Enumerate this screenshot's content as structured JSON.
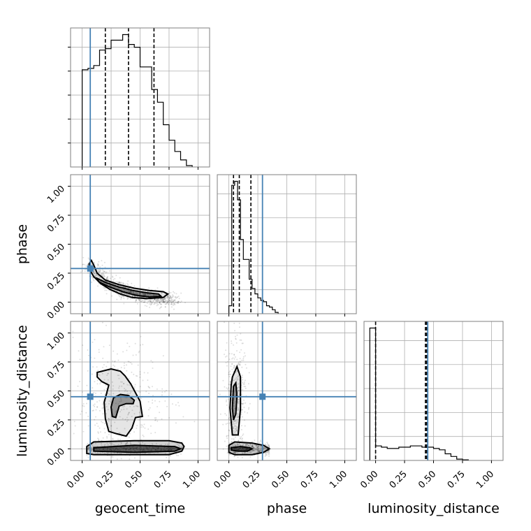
{
  "chart_data": {
    "type": "corner",
    "parameters": [
      "geocent_time",
      "phase",
      "luminosity_distance"
    ],
    "axis_range": [
      -0.1,
      1.1
    ],
    "ticks": [
      "0.00",
      "0.25",
      "0.50",
      "0.75",
      "1.00"
    ],
    "tick_values": [
      0,
      0.25,
      0.5,
      0.75,
      1.0
    ],
    "grid": true,
    "truth_color": "#4682b4",
    "truths": {
      "geocent_time": 0.07,
      "phase": 0.29,
      "luminosity_distance": 0.45
    },
    "quantiles": {
      "geocent_time": [
        0.2,
        0.4,
        0.62
      ],
      "phase": [
        0.04,
        0.09,
        0.19
      ],
      "luminosity_distance": [
        0.0,
        0.43,
        0.44
      ]
    },
    "histograms": {
      "geocent_time": {
        "edges": [
          0.0,
          0.05,
          0.1,
          0.15,
          0.2,
          0.25,
          0.3,
          0.35,
          0.4,
          0.45,
          0.5,
          0.55,
          0.6,
          0.65,
          0.7,
          0.75,
          0.8,
          0.85,
          0.9,
          0.95
        ],
        "counts": [
          0.69,
          0.7,
          0.72,
          0.83,
          0.84,
          0.9,
          0.9,
          0.94,
          0.87,
          0.85,
          0.71,
          0.71,
          0.55,
          0.46,
          0.3,
          0.19,
          0.11,
          0.05,
          0.01
        ]
      },
      "phase": {
        "edges": [
          0.0,
          0.025,
          0.05,
          0.075,
          0.1,
          0.125,
          0.15,
          0.175,
          0.2,
          0.225,
          0.25,
          0.275,
          0.3,
          0.325,
          0.35,
          0.375,
          0.4,
          0.425
        ],
        "counts": [
          0.06,
          0.97,
          1.0,
          0.86,
          0.56,
          0.41,
          0.41,
          0.26,
          0.19,
          0.15,
          0.12,
          0.1,
          0.09,
          0.06,
          0.05,
          0.03,
          0.01
        ]
      },
      "luminosity_distance": {
        "edges": [
          -0.05,
          0.0,
          0.05,
          0.1,
          0.15,
          0.2,
          0.25,
          0.3,
          0.35,
          0.4,
          0.45,
          0.5,
          0.55,
          0.6,
          0.65,
          0.7,
          0.75,
          0.8
        ],
        "counts": [
          1.0,
          0.11,
          0.1,
          0.09,
          0.09,
          0.1,
          0.1,
          0.11,
          0.11,
          0.1,
          0.1,
          0.09,
          0.08,
          0.05,
          0.03,
          0.01,
          0.005
        ]
      }
    },
    "pairs": [
      {
        "x": "geocent_time",
        "y": "phase",
        "density_center": [
          0.45,
          0.1
        ],
        "contour_outer": [
          [
            0.06,
            0.33
          ],
          [
            0.08,
            0.36
          ],
          [
            0.1,
            0.32
          ],
          [
            0.13,
            0.25
          ],
          [
            0.2,
            0.19
          ],
          [
            0.32,
            0.15
          ],
          [
            0.45,
            0.12
          ],
          [
            0.58,
            0.1
          ],
          [
            0.7,
            0.09
          ],
          [
            0.74,
            0.07
          ],
          [
            0.7,
            0.04
          ],
          [
            0.56,
            0.03
          ],
          [
            0.43,
            0.04
          ],
          [
            0.33,
            0.07
          ],
          [
            0.24,
            0.11
          ],
          [
            0.16,
            0.16
          ],
          [
            0.1,
            0.22
          ],
          [
            0.07,
            0.27
          ],
          [
            0.06,
            0.33
          ]
        ],
        "contour_inner": [
          [
            0.12,
            0.21
          ],
          [
            0.2,
            0.17
          ],
          [
            0.32,
            0.13
          ],
          [
            0.44,
            0.1
          ],
          [
            0.56,
            0.08
          ],
          [
            0.66,
            0.07
          ],
          [
            0.68,
            0.05
          ],
          [
            0.58,
            0.045
          ],
          [
            0.46,
            0.06
          ],
          [
            0.35,
            0.09
          ],
          [
            0.24,
            0.13
          ],
          [
            0.15,
            0.17
          ],
          [
            0.12,
            0.21
          ]
        ]
      },
      {
        "x": "geocent_time",
        "y": "luminosity_distance",
        "density_center": [
          0.3,
          0.0
        ],
        "contour_outer": [
          [
            0.13,
            0.66
          ],
          [
            0.25,
            0.69
          ],
          [
            0.33,
            0.67
          ],
          [
            0.37,
            0.63
          ],
          [
            0.42,
            0.56
          ],
          [
            0.5,
            0.41
          ],
          [
            0.52,
            0.28
          ],
          [
            0.46,
            0.27
          ],
          [
            0.43,
            0.18
          ],
          [
            0.38,
            0.11
          ],
          [
            0.3,
            0.13
          ],
          [
            0.23,
            0.15
          ],
          [
            0.2,
            0.26
          ],
          [
            0.19,
            0.4
          ],
          [
            0.23,
            0.55
          ],
          [
            0.17,
            0.58
          ],
          [
            0.13,
            0.62
          ],
          [
            0.13,
            0.66
          ]
        ],
        "contour_inner": [
          [
            0.27,
            0.44
          ],
          [
            0.33,
            0.47
          ],
          [
            0.4,
            0.46
          ],
          [
            0.45,
            0.42
          ],
          [
            0.44,
            0.39
          ],
          [
            0.38,
            0.39
          ],
          [
            0.32,
            0.37
          ],
          [
            0.29,
            0.27
          ],
          [
            0.26,
            0.28
          ],
          [
            0.25,
            0.36
          ],
          [
            0.27,
            0.44
          ]
        ],
        "band_outer": [
          [
            0.04,
            0.02
          ],
          [
            0.1,
            0.06
          ],
          [
            0.45,
            0.07
          ],
          [
            0.75,
            0.07
          ],
          [
            0.86,
            0.05
          ],
          [
            0.88,
            0.02
          ],
          [
            0.86,
            -0.02
          ],
          [
            0.75,
            -0.05
          ],
          [
            0.45,
            -0.05
          ],
          [
            0.1,
            -0.05
          ],
          [
            0.04,
            -0.04
          ],
          [
            0.04,
            0.02
          ]
        ],
        "band_inner": [
          [
            0.1,
            0.01
          ],
          [
            0.45,
            0.03
          ],
          [
            0.8,
            0.02
          ],
          [
            0.85,
            0.0
          ],
          [
            0.8,
            -0.02
          ],
          [
            0.45,
            -0.03
          ],
          [
            0.1,
            -0.02
          ],
          [
            0.1,
            0.01
          ]
        ]
      },
      {
        "x": "phase",
        "y": "luminosity_distance",
        "density_center": [
          0.05,
          0.0
        ],
        "contour_outer": [
          [
            0.03,
            0.62
          ],
          [
            0.07,
            0.71
          ],
          [
            0.1,
            0.62
          ],
          [
            0.1,
            0.35
          ],
          [
            0.08,
            0.12
          ],
          [
            0.03,
            0.12
          ],
          [
            0.01,
            0.35
          ],
          [
            0.02,
            0.55
          ],
          [
            0.03,
            0.62
          ]
        ],
        "contour_inner": [
          [
            0.04,
            0.54
          ],
          [
            0.06,
            0.57
          ],
          [
            0.07,
            0.45
          ],
          [
            0.06,
            0.3
          ],
          [
            0.04,
            0.25
          ],
          [
            0.03,
            0.35
          ],
          [
            0.04,
            0.54
          ]
        ],
        "band_outer": [
          [
            0.0,
            0.03
          ],
          [
            0.05,
            0.06
          ],
          [
            0.2,
            0.05
          ],
          [
            0.3,
            0.03
          ],
          [
            0.35,
            0.0
          ],
          [
            0.3,
            -0.03
          ],
          [
            0.2,
            -0.05
          ],
          [
            0.05,
            -0.05
          ],
          [
            0.0,
            -0.03
          ],
          [
            0.0,
            0.03
          ]
        ],
        "band_inner": [
          [
            0.02,
            0.01
          ],
          [
            0.1,
            0.02
          ],
          [
            0.18,
            0.01
          ],
          [
            0.2,
            0.0
          ],
          [
            0.16,
            -0.02
          ],
          [
            0.08,
            -0.02
          ],
          [
            0.02,
            -0.01
          ],
          [
            0.02,
            0.01
          ]
        ]
      }
    ]
  }
}
